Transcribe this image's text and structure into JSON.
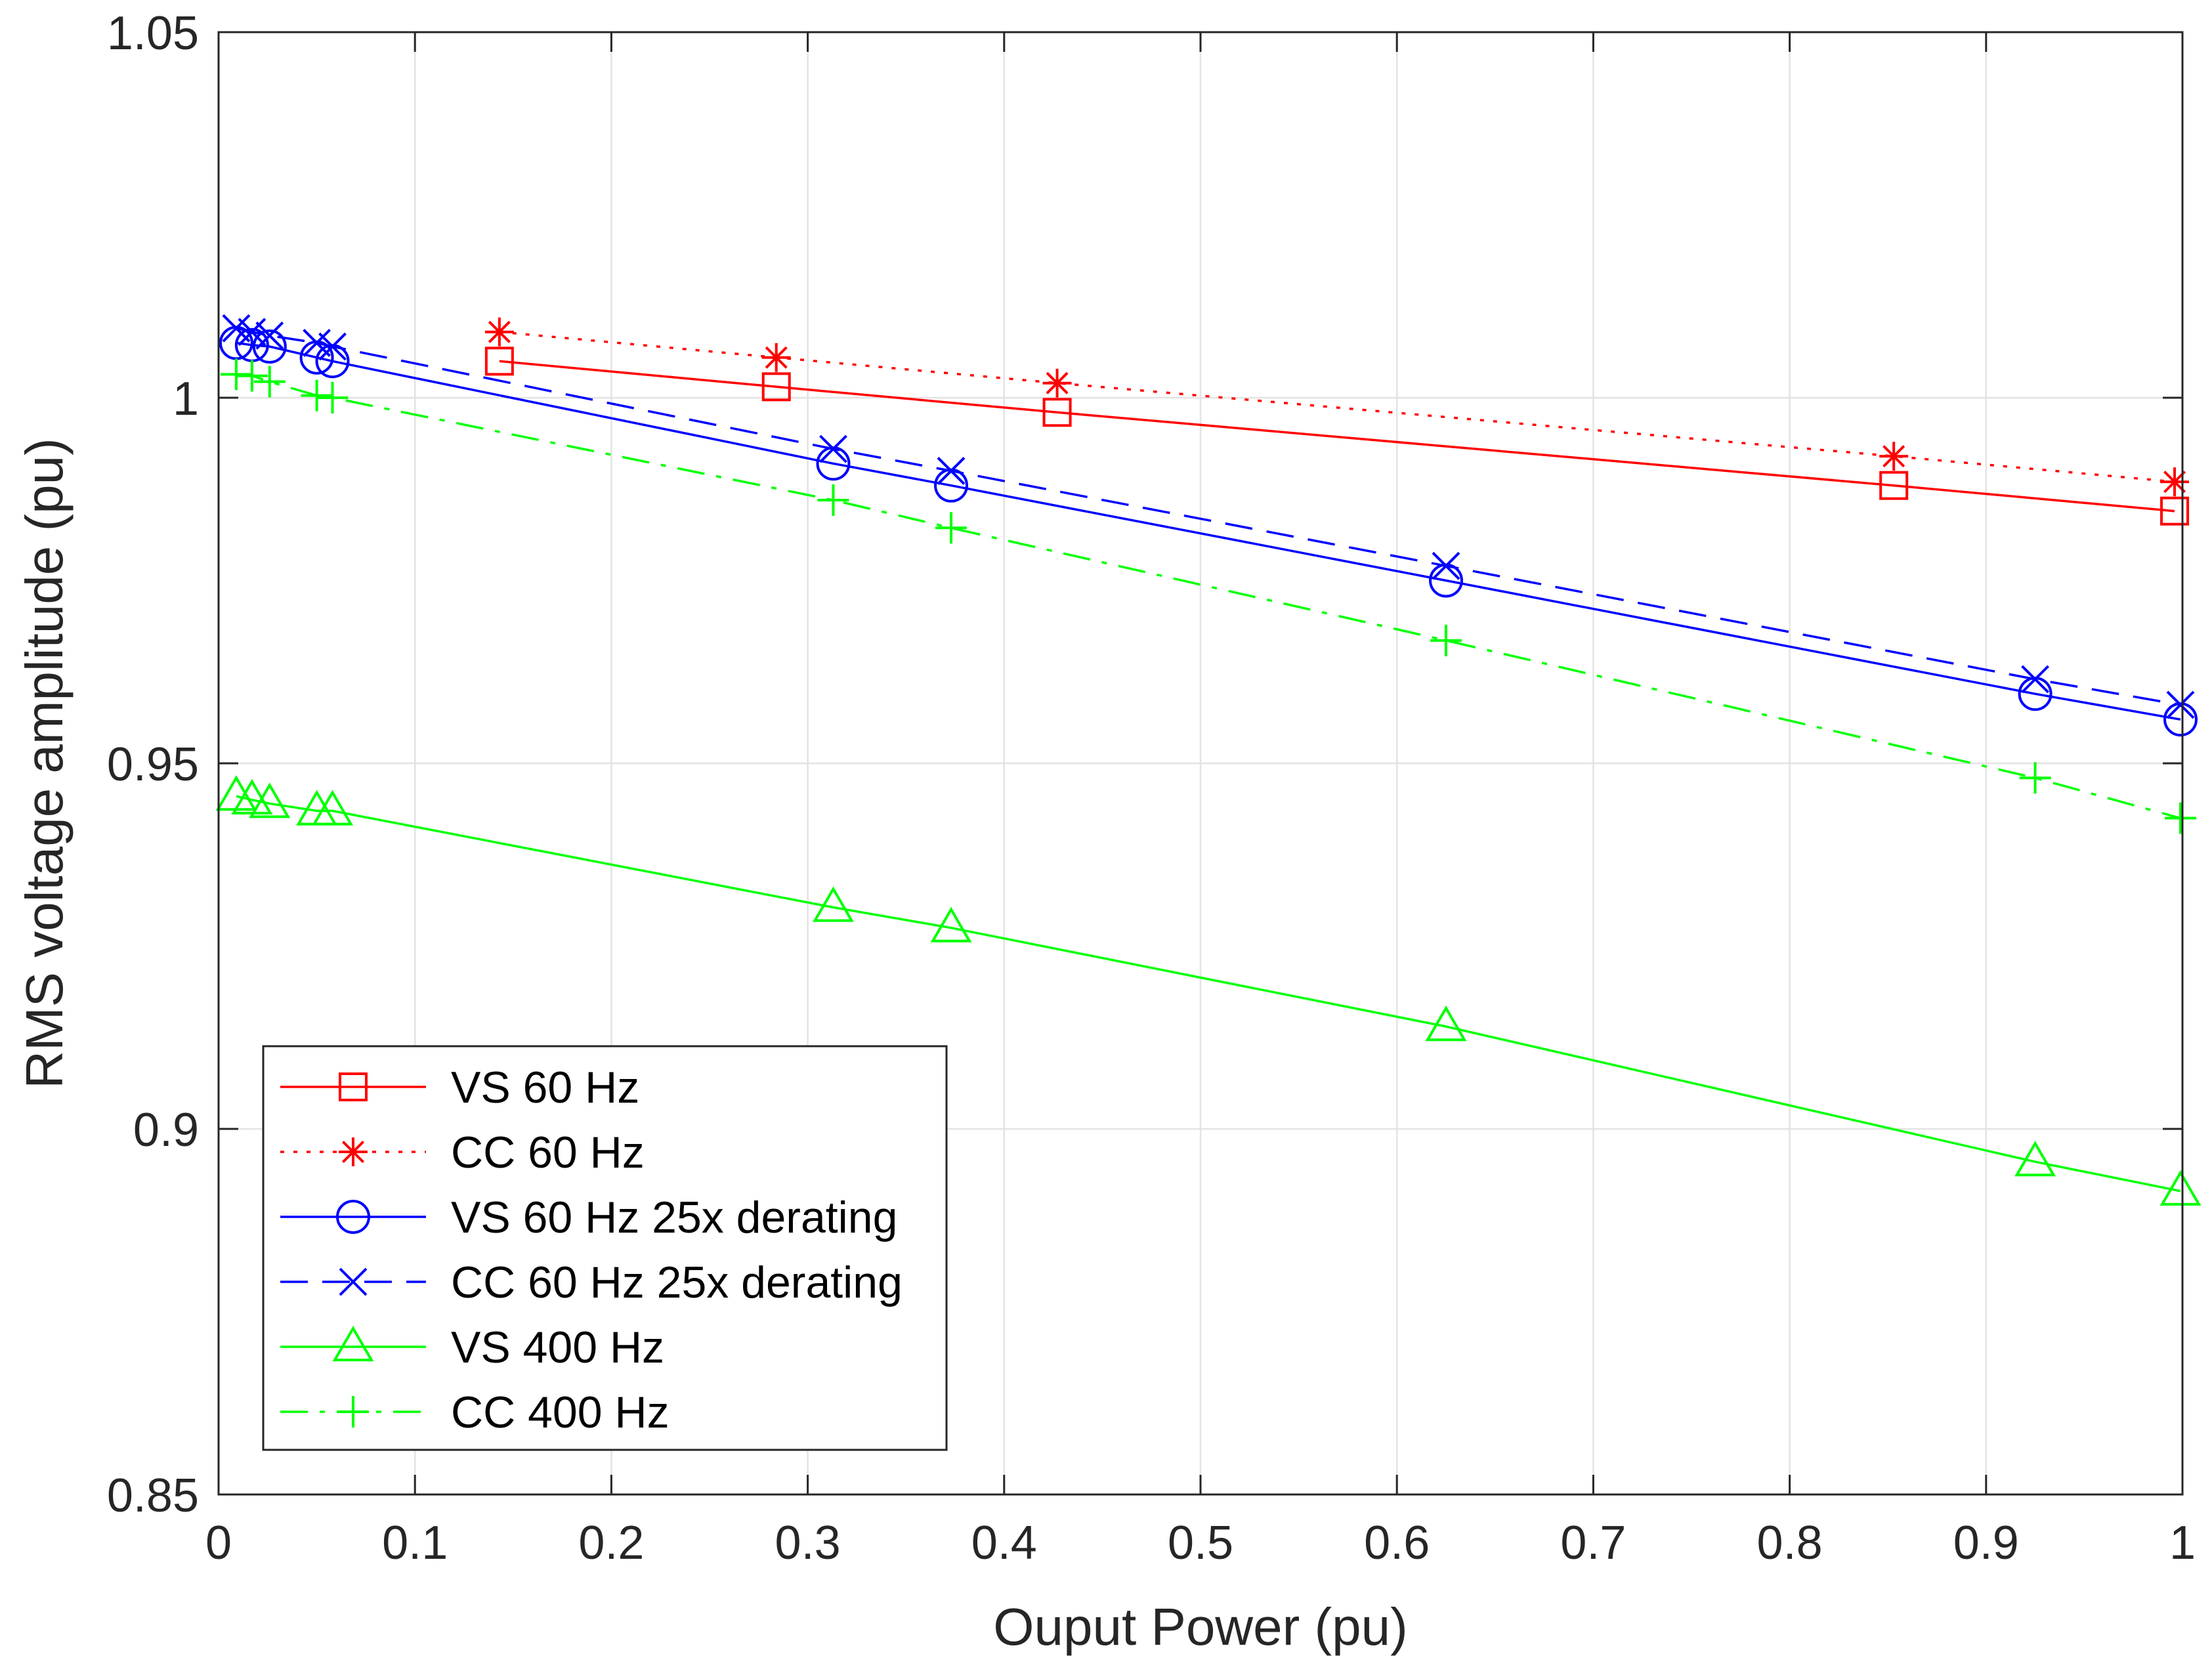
{
  "chart_data": {
    "type": "line",
    "title": "",
    "xlabel": "Ouput Power (pu)",
    "ylabel": "RMS voltage amplitude (pu)",
    "xlim": [
      0,
      1
    ],
    "ylim": [
      0.85,
      1.05
    ],
    "xticks": [
      0,
      0.1,
      0.2,
      0.3,
      0.4,
      0.5,
      0.6,
      0.7,
      0.8,
      0.9,
      1
    ],
    "xtick_labels": [
      "0",
      "0.1",
      "0.2",
      "0.3",
      "0.4",
      "0.5",
      "0.6",
      "0.7",
      "0.8",
      "0.9",
      "1"
    ],
    "yticks": [
      0.85,
      0.9,
      0.95,
      1,
      1.05
    ],
    "ytick_labels": [
      "0.85",
      "0.9",
      "0.95",
      "1",
      "1.05"
    ],
    "grid": true,
    "legend_position": "bottom-left",
    "series": [
      {
        "name": "VS 60 Hz",
        "color": "#ff0000",
        "line_style": "solid",
        "marker": "square",
        "x": [
          0.143,
          0.284,
          0.427,
          0.853,
          0.996
        ],
        "y": [
          1.005,
          1.0015,
          0.998,
          0.988,
          0.9845
        ]
      },
      {
        "name": "CC 60 Hz",
        "color": "#ff0000",
        "line_style": "dotted",
        "marker": "asterisk",
        "x": [
          0.143,
          0.284,
          0.427,
          0.853,
          0.996
        ],
        "y": [
          1.009,
          1.0055,
          1.002,
          0.992,
          0.9885
        ]
      },
      {
        "name": "VS 60 Hz 25x derating",
        "color": "#0000ff",
        "line_style": "solid",
        "marker": "circle",
        "x": [
          0.009,
          0.017,
          0.026,
          0.05,
          0.058,
          0.313,
          0.373,
          0.625,
          0.925,
          0.999
        ],
        "y": [
          1.0075,
          1.0072,
          1.007,
          1.0055,
          1.005,
          0.991,
          0.988,
          0.975,
          0.9595,
          0.956
        ]
      },
      {
        "name": "CC 60 Hz 25x derating",
        "color": "#0000ff",
        "line_style": "dashed",
        "marker": "x",
        "x": [
          0.009,
          0.017,
          0.026,
          0.05,
          0.058,
          0.313,
          0.373,
          0.625,
          0.925,
          0.999
        ],
        "y": [
          1.0095,
          1.009,
          1.0085,
          1.0075,
          1.007,
          0.993,
          0.99,
          0.977,
          0.9615,
          0.958
        ]
      },
      {
        "name": "VS 400 Hz",
        "color": "#00ff00",
        "line_style": "solid",
        "marker": "triangle",
        "x": [
          0.009,
          0.017,
          0.026,
          0.05,
          0.058,
          0.313,
          0.373,
          0.625,
          0.925,
          0.999
        ],
        "y": [
          0.9455,
          0.945,
          0.9445,
          0.9435,
          0.9435,
          0.9303,
          0.9275,
          0.914,
          0.8955,
          0.8915
        ]
      },
      {
        "name": "CC 400 Hz",
        "color": "#00ff00",
        "line_style": "dashdot",
        "marker": "plus",
        "x": [
          0.009,
          0.017,
          0.026,
          0.05,
          0.058,
          0.313,
          0.373,
          0.625,
          0.925,
          0.999
        ],
        "y": [
          1.0032,
          1.003,
          1.0022,
          1.0003,
          1.0,
          0.986,
          0.9822,
          0.9668,
          0.948,
          0.9425
        ]
      }
    ]
  }
}
